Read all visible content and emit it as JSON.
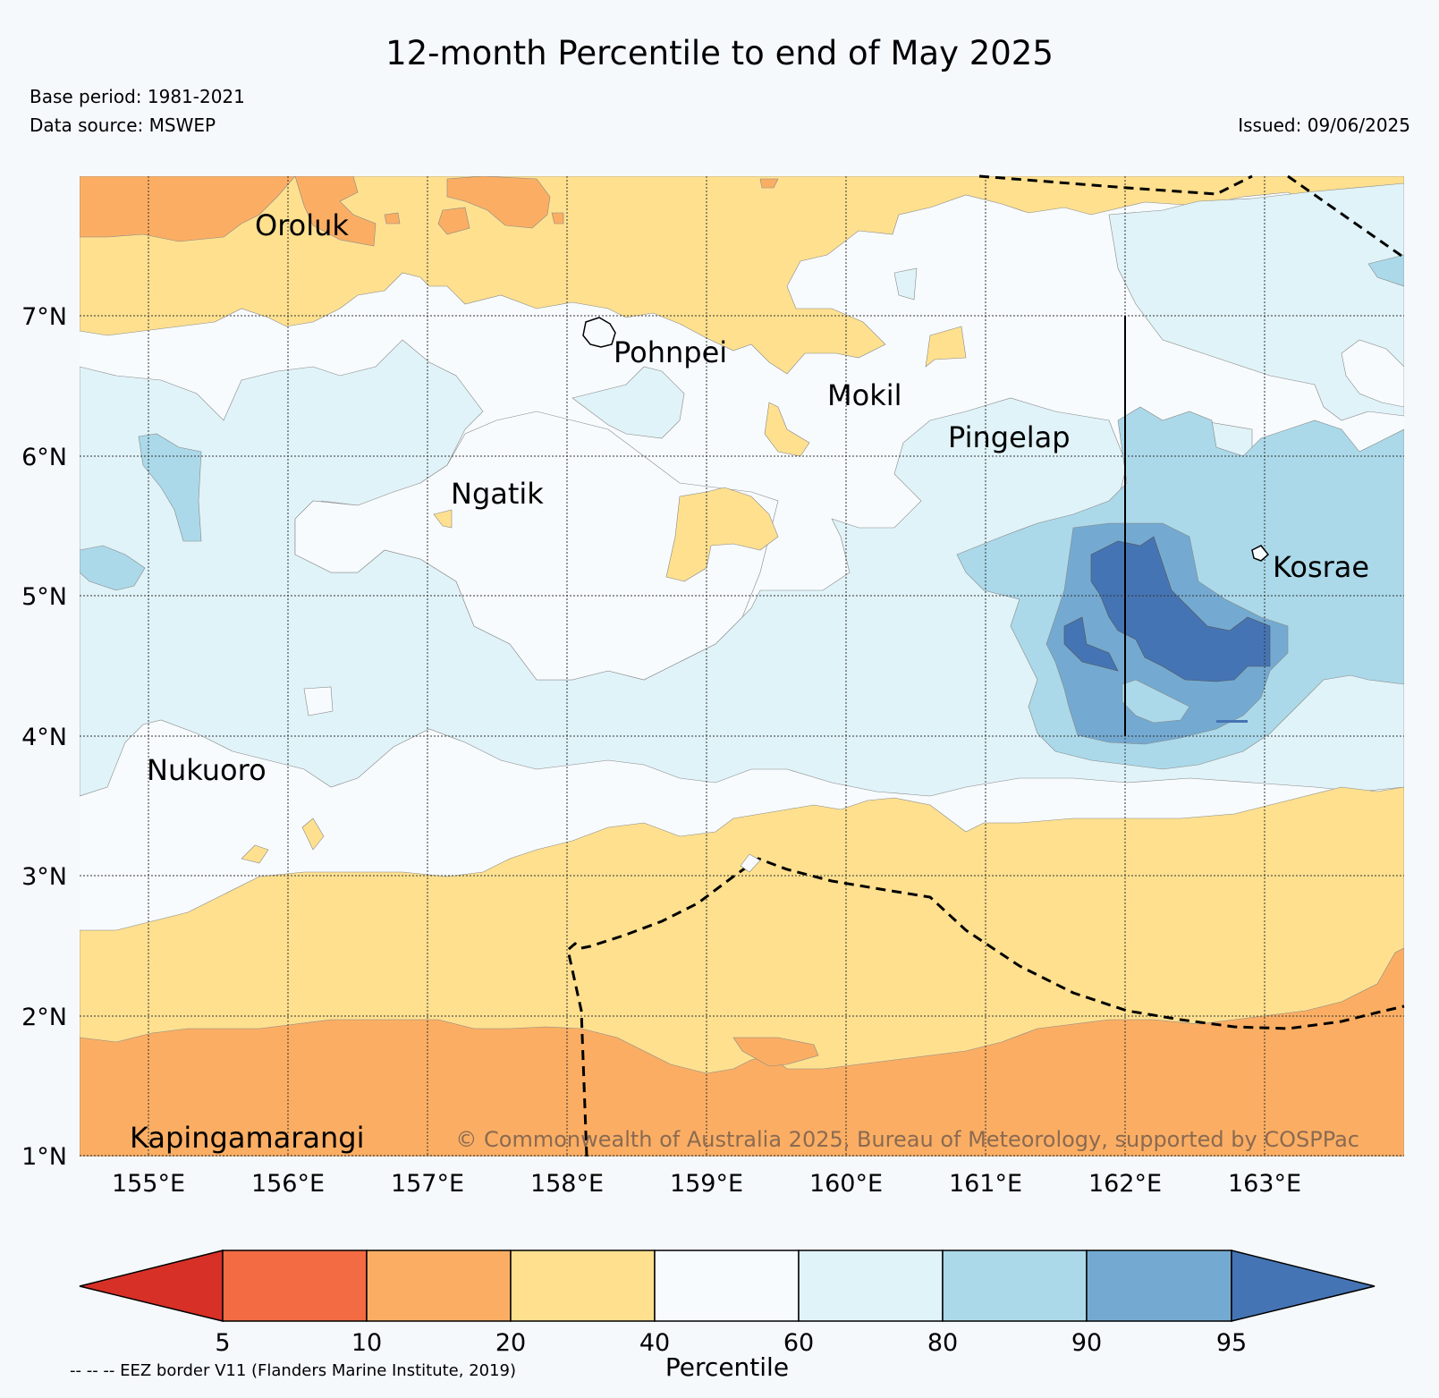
{
  "header": {
    "title": "12-month Percentile to end of May 2025",
    "base_period": "Base period: 1981-2021",
    "data_source": "Data source: MSWEP",
    "issued": "Issued: 09/06/2025"
  },
  "map": {
    "lat_labels": [
      "7°N",
      "6°N",
      "5°N",
      "4°N",
      "3°N",
      "2°N",
      "1°N"
    ],
    "lon_labels": [
      "155°E",
      "156°E",
      "157°E",
      "158°E",
      "159°E",
      "160°E",
      "161°E",
      "162°E",
      "163°E"
    ],
    "places": [
      "Oroluk",
      "Pohnpei",
      "Mokil",
      "Pingelap",
      "Ngatik",
      "Kosrae",
      "Nukuoro",
      "Kapingamarangi"
    ],
    "copyright": "© Commonwealth of Australia 2025, Bureau of Meteorology, supported by COSPPac",
    "colors": {
      "p5_10": "#f26b43",
      "p10_20": "#fbae63",
      "p20_40": "#fee08f",
      "p40_60": "#f7fbfe",
      "p60_80": "#e0f3f8",
      "p80_90": "#abd9e9",
      "p90_95": "#74aad1",
      "p95_plus": "#4574b4",
      "below5": "#d73027"
    }
  },
  "colorbar": {
    "ticks": [
      "5",
      "10",
      "20",
      "40",
      "60",
      "80",
      "90",
      "95"
    ],
    "label": "Percentile",
    "colors": [
      "#d73027",
      "#f26b43",
      "#fbae63",
      "#fee08f",
      "#f7fbfe",
      "#e0f3f8",
      "#abd9e9",
      "#74aad1",
      "#4574b4"
    ]
  },
  "footer": {
    "eez_note": "-- -- -- EEZ border V11 (Flanders Marine Institute, 2019)"
  }
}
